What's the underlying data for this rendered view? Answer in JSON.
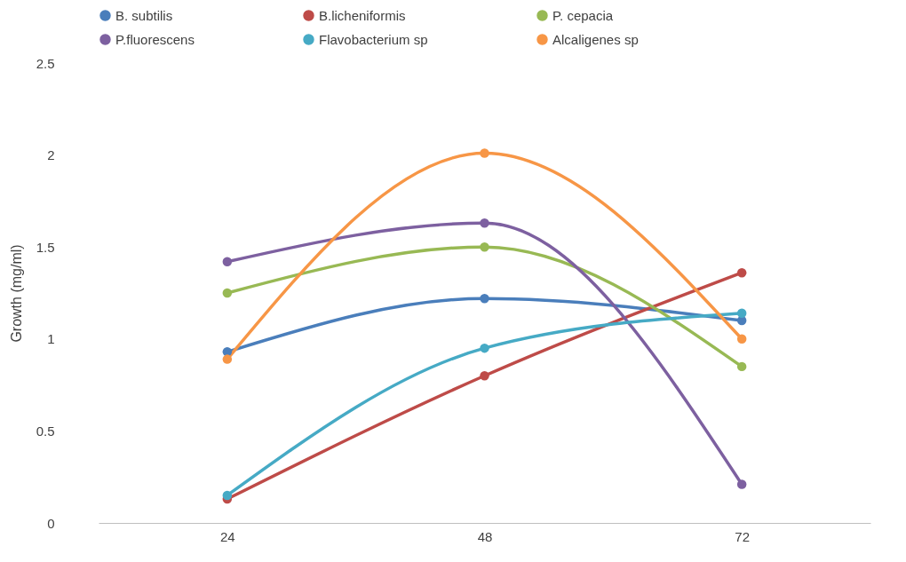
{
  "chart_data": {
    "type": "line",
    "ylabel": "Growth (mg/ml)",
    "categories": [
      "24",
      "48",
      "72"
    ],
    "ylim": [
      0,
      2.5
    ],
    "yticks": [
      0,
      0.5,
      1,
      1.5,
      2,
      2.5
    ],
    "grid": false,
    "legend": "top",
    "marker": "circle",
    "line_style": "solid",
    "series": [
      {
        "name": "B. subtilis",
        "color": "#4a7ebb",
        "values": [
          0.93,
          1.22,
          1.1
        ]
      },
      {
        "name": "B.licheniformis",
        "color": "#be4b48",
        "values": [
          0.13,
          0.8,
          1.36
        ]
      },
      {
        "name": "P. cepacia",
        "color": "#98b954",
        "values": [
          1.25,
          1.5,
          0.85
        ]
      },
      {
        "name": "P.fluorescens",
        "color": "#7d60a0",
        "values": [
          1.42,
          1.63,
          0.21
        ]
      },
      {
        "name": "Flavobacterium sp",
        "color": "#46aac5",
        "values": [
          0.15,
          0.95,
          1.14
        ]
      },
      {
        "name": "Alcaligenes sp",
        "color": "#f79646",
        "values": [
          0.89,
          2.01,
          1.0
        ]
      }
    ]
  }
}
